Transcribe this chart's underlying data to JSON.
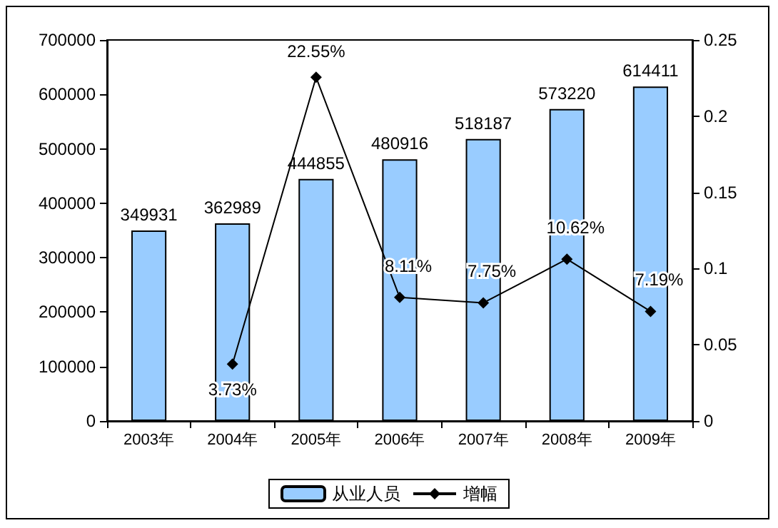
{
  "chart_data": {
    "type": "bar",
    "categories": [
      "2003年",
      "2004年",
      "2005年",
      "2006年",
      "2007年",
      "2008年",
      "2009年"
    ],
    "series": [
      {
        "name": "从业人员",
        "color": "#99ccff",
        "values": [
          349931,
          362989,
          444855,
          480916,
          518187,
          573220,
          614411
        ],
        "data_labels": true
      },
      {
        "name": "增幅",
        "type": "line",
        "axis": "y2",
        "color": "#000000",
        "marker": "diamond",
        "values": [
          null,
          0.0373,
          0.2255,
          0.0811,
          0.0775,
          0.1062,
          0.0719
        ],
        "value_labels": [
          null,
          "3.73%",
          "22.55%",
          "8.11%",
          "7.75%",
          "10.62%",
          "7.19%"
        ]
      }
    ],
    "ylim": [
      0,
      700000
    ],
    "yticks": [
      0,
      100000,
      200000,
      300000,
      400000,
      500000,
      600000,
      700000
    ],
    "y2lim": [
      0,
      0.25
    ],
    "y2ticks": [
      0,
      0.05,
      0.1,
      0.15,
      0.2,
      0.25
    ],
    "grid": false,
    "legend": "bottom"
  }
}
